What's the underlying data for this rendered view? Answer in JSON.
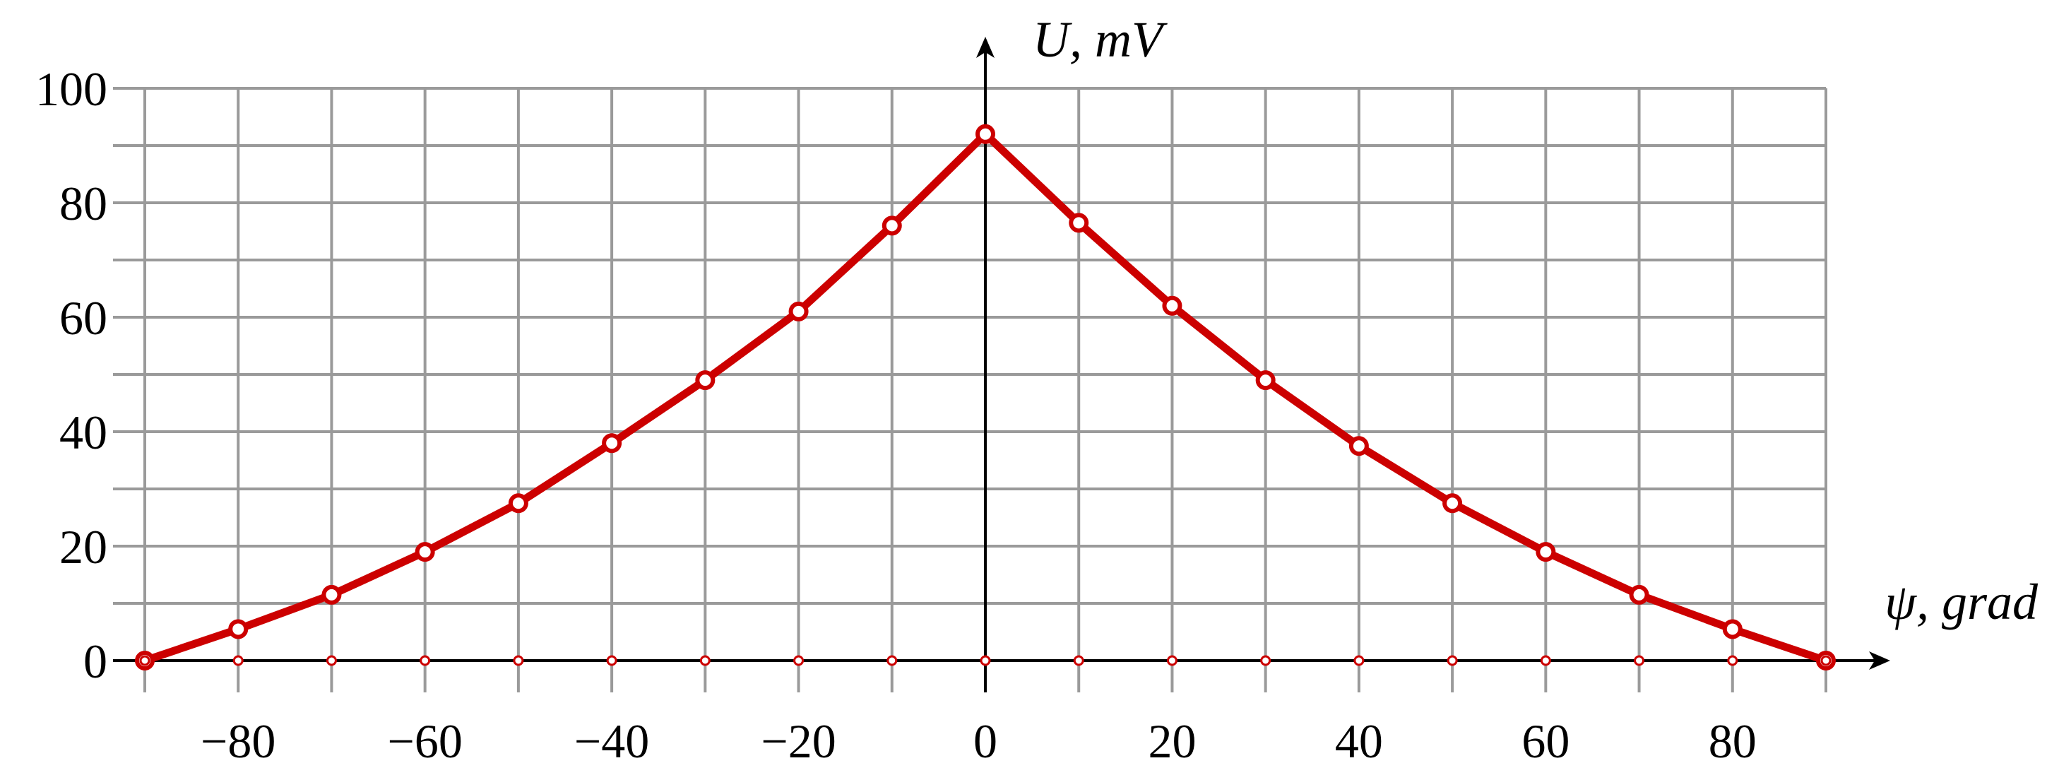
{
  "chart_data": {
    "type": "line",
    "xlabel": "ψ, grad",
    "ylabel": "U, mV",
    "xlim": [
      -90,
      90
    ],
    "ylim": [
      0,
      100
    ],
    "x_ticks": [
      -80,
      -60,
      -40,
      -20,
      0,
      20,
      40,
      60,
      80
    ],
    "x_tick_labels": [
      "−80",
      "−60",
      "−40",
      "−20",
      "0",
      "20",
      "40",
      "60",
      "80"
    ],
    "y_ticks": [
      0,
      20,
      40,
      60,
      80,
      100
    ],
    "y_tick_labels": [
      "0",
      "20",
      "40",
      "60",
      "80",
      "100"
    ],
    "grid": true,
    "series": [
      {
        "color": "#cc0000",
        "x": [
          -90,
          -80,
          -70,
          -60,
          -50,
          -40,
          -30,
          -20,
          -10,
          0,
          10,
          20,
          30,
          40,
          50,
          60,
          70,
          80,
          90
        ],
        "y": [
          0,
          5.5,
          11.5,
          19,
          27.5,
          38,
          49,
          61,
          76,
          92,
          76.5,
          62,
          49,
          37.5,
          27.5,
          19,
          11.5,
          5.5,
          0
        ]
      }
    ],
    "baseline_markers_x": [
      -90,
      -80,
      -70,
      -60,
      -50,
      -40,
      -30,
      -20,
      -10,
      0,
      10,
      20,
      30,
      40,
      50,
      60,
      70,
      80,
      90
    ]
  }
}
